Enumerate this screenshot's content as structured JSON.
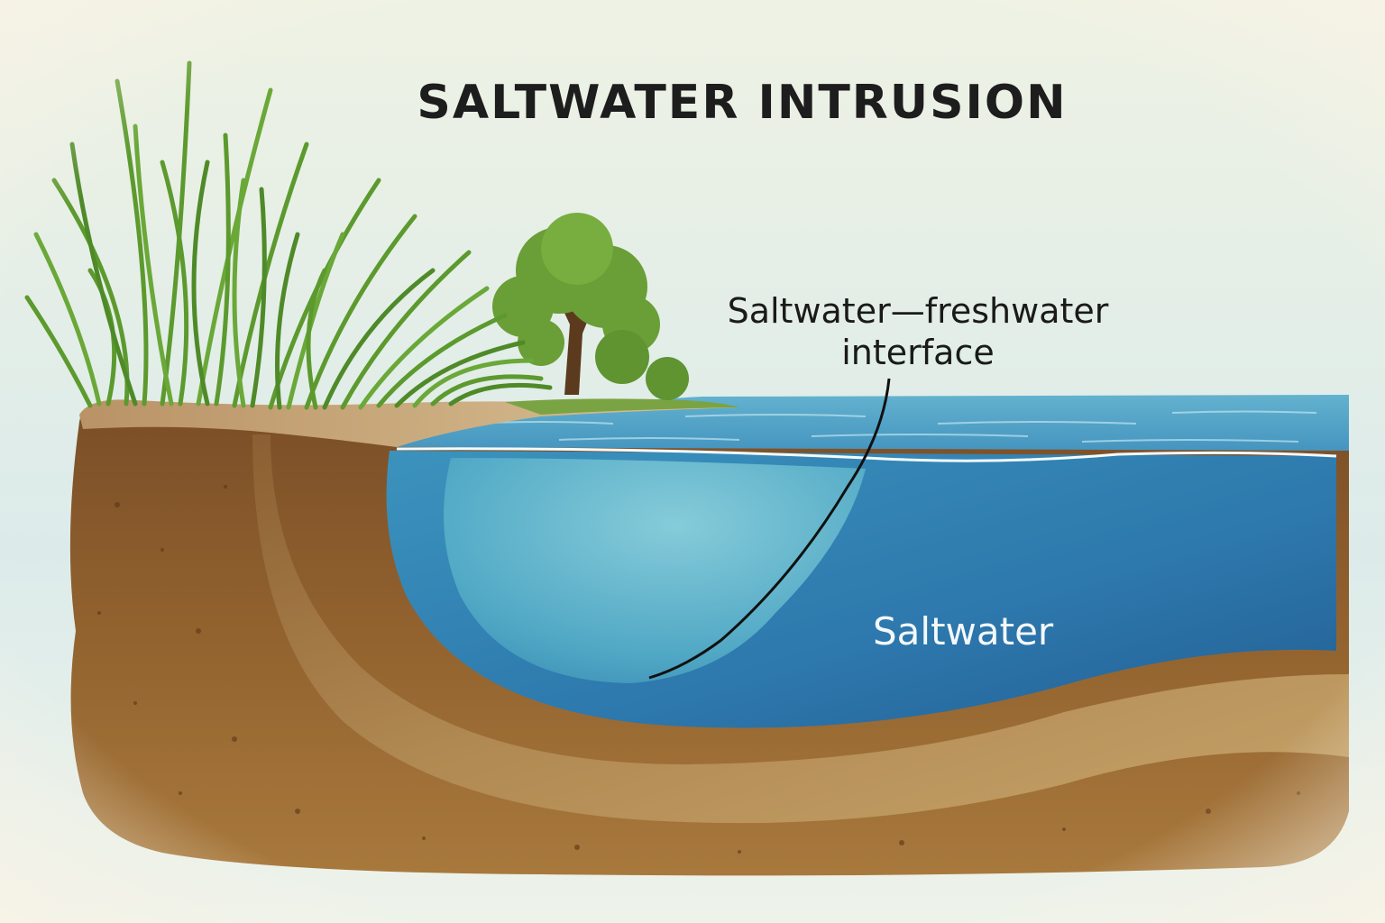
{
  "title": "SALTWATER INTRUSION",
  "labels": {
    "interface_line1": "Saltwater—freshwater",
    "interface_line2": "interface",
    "saltwater": "Saltwater"
  },
  "colors": {
    "sky": "#dfeceb",
    "sea_surface": "#4a9cc0",
    "saltwater": "#2f7fb0",
    "freshwater": "#6fc2d2",
    "soil": "#8a5a2e",
    "sand": "#c9a56d",
    "grass": "#5c9a2e",
    "tree_foliage": "#6a9e36"
  }
}
